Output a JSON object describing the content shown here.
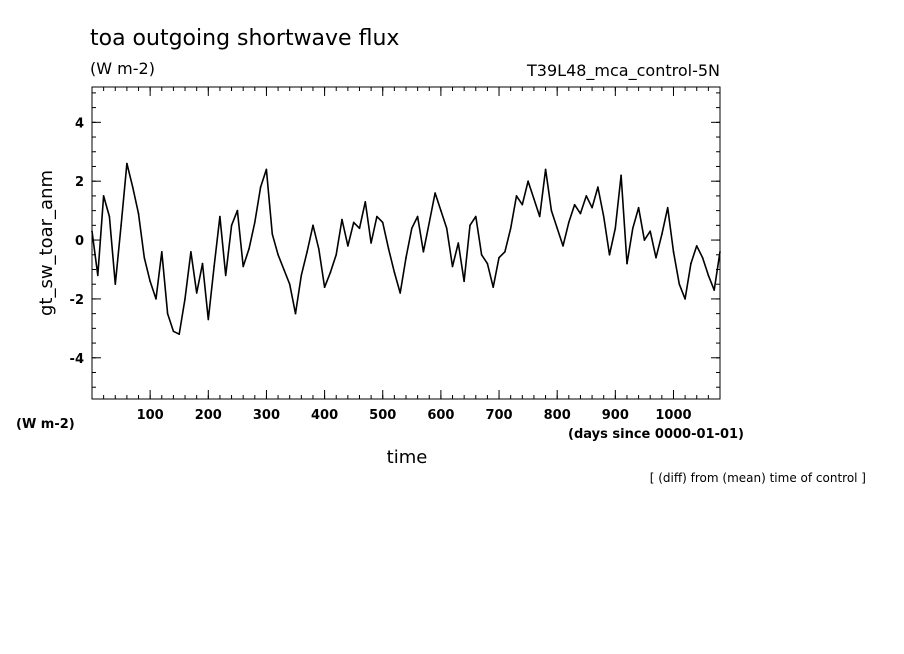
{
  "chart_data": {
    "type": "line",
    "title": "toa outgoing shortwave flux",
    "subtitle": "(W m-2)",
    "run_label": "T39L48_mca_control-5N",
    "xlabel": "time",
    "x_units": "(days since 0000-01-01)",
    "ylabel": "gt_sw_toar_anm",
    "y_units": "(W m-2)",
    "note": "[ (diff) from (mean) time of control ]",
    "xlim": [
      0,
      1080
    ],
    "ylim": [
      -5.4,
      5.2
    ],
    "x_ticks": [
      100,
      200,
      300,
      400,
      500,
      600,
      700,
      800,
      900,
      1000
    ],
    "x_tick_labels": [
      "100",
      "200",
      "300",
      "400",
      "500",
      "600",
      "700",
      "800",
      "900",
      "1000"
    ],
    "y_ticks": [
      -4,
      -2,
      0,
      2,
      4
    ],
    "y_tick_labels": [
      "-4",
      "-2",
      "0",
      "2",
      "4"
    ],
    "grid": false,
    "line_color": "#000000",
    "series": [
      {
        "x": [
          0,
          10,
          20,
          30,
          40,
          50,
          60,
          70,
          80,
          90,
          100,
          110,
          120,
          130,
          140,
          150,
          160,
          170,
          180,
          190,
          200,
          210,
          220,
          230,
          240,
          250,
          260,
          270,
          280,
          290,
          300,
          310,
          320,
          330,
          340,
          350,
          360,
          370,
          380,
          390,
          400,
          410,
          420,
          430,
          440,
          450,
          460,
          470,
          480,
          490,
          500,
          510,
          520,
          530,
          540,
          550,
          560,
          570,
          580,
          590,
          600,
          610,
          620,
          630,
          640,
          650,
          660,
          670,
          680,
          690,
          700,
          710,
          720,
          730,
          740,
          750,
          760,
          770,
          780,
          790,
          800,
          810,
          820,
          830,
          840,
          850,
          860,
          870,
          880,
          890,
          900,
          910,
          920,
          930,
          940,
          950,
          960,
          970,
          980,
          990,
          1000,
          1010,
          1020,
          1030,
          1040,
          1050,
          1060,
          1070,
          1080
        ],
        "y": [
          0.3,
          -1.2,
          1.5,
          0.8,
          -1.5,
          0.5,
          2.6,
          1.8,
          0.9,
          -0.6,
          -1.4,
          -2.0,
          -0.4,
          -2.5,
          -3.1,
          -3.2,
          -2.0,
          -0.4,
          -1.8,
          -0.8,
          -2.7,
          -0.9,
          0.8,
          -1.2,
          0.5,
          1.0,
          -0.9,
          -0.3,
          0.6,
          1.8,
          2.4,
          0.2,
          -0.5,
          -1.0,
          -1.5,
          -2.5,
          -1.2,
          -0.4,
          0.5,
          -0.3,
          -1.6,
          -1.1,
          -0.5,
          0.7,
          -0.2,
          0.6,
          0.4,
          1.3,
          -0.1,
          0.8,
          0.6,
          -0.3,
          -1.1,
          -1.8,
          -0.6,
          0.4,
          0.8,
          -0.4,
          0.6,
          1.6,
          1.0,
          0.4,
          -0.9,
          -0.1,
          -1.4,
          0.5,
          0.8,
          -0.5,
          -0.8,
          -1.6,
          -0.6,
          -0.4,
          0.4,
          1.5,
          1.2,
          2.0,
          1.4,
          0.8,
          2.4,
          1.0,
          0.4,
          -0.2,
          0.6,
          1.2,
          0.9,
          1.5,
          1.1,
          1.8,
          0.8,
          -0.5,
          0.4,
          2.2,
          -0.8,
          0.4,
          1.1,
          0.0,
          0.3,
          -0.6,
          0.2,
          1.1,
          -0.4,
          -1.5,
          -2.0,
          -0.8,
          -0.2,
          -0.6,
          -1.2,
          -1.7,
          -0.4
        ]
      }
    ]
  }
}
